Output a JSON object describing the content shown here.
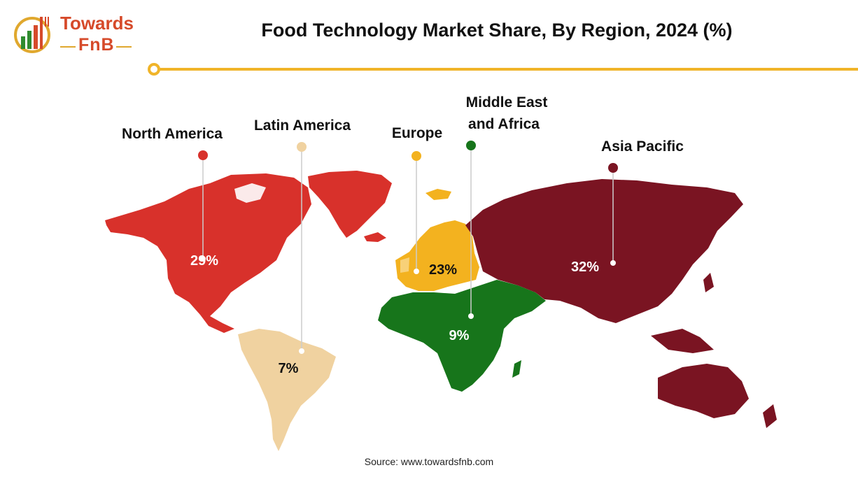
{
  "brand": {
    "name_top": "Towards",
    "name_bottom": "FnB"
  },
  "title": "Food Technology Market Share, By Region, 2024 (%)",
  "source": "Source: www.towardsfnb.com",
  "colors": {
    "north_america": "#d8312b",
    "latin_america": "#f0d2a0",
    "europe": "#f3b21f",
    "middle_east_africa": "#17751b",
    "asia_pacific": "#7a1422",
    "accent_line": "#f0b429"
  },
  "regions": [
    {
      "key": "north_america",
      "name": "North America",
      "value": 29,
      "value_label": "29%"
    },
    {
      "key": "latin_america",
      "name": "Latin America",
      "value": 7,
      "value_label": "7%"
    },
    {
      "key": "europe",
      "name": "Europe",
      "value": 23,
      "value_label": "23%"
    },
    {
      "key": "middle_east_africa",
      "name_line1": "Middle East",
      "name_line2": "and Africa",
      "value": 9,
      "value_label": "9%"
    },
    {
      "key": "asia_pacific",
      "name": "Asia Pacific",
      "value": 32,
      "value_label": "32%"
    }
  ]
}
